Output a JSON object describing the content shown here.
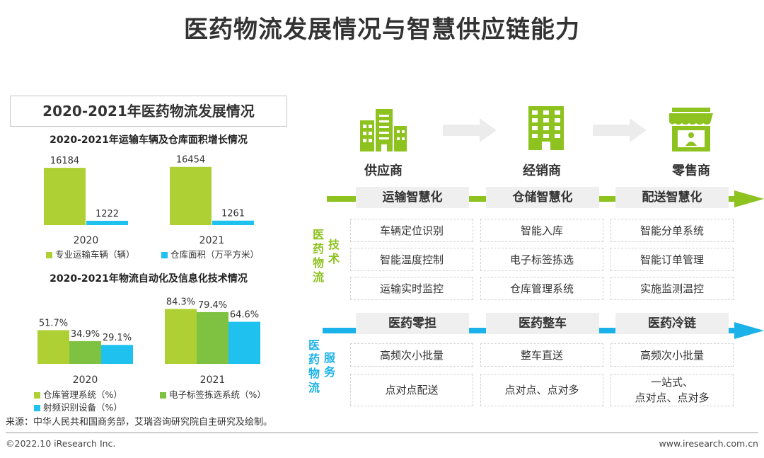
{
  "page_title": "医药物流发展情况与智慧供应链能力",
  "left_panel": {
    "box_title": "2020-2021年医药物流发展情况"
  },
  "colors": {
    "light_green": "#afd034",
    "mid_green": "#7fc241",
    "cyan": "#1fc2ef"
  },
  "chart_data": [
    {
      "type": "bar",
      "title": "2020-2021年运输车辆及仓库面积增长情况",
      "categories": [
        "2020",
        "2021"
      ],
      "series": [
        {
          "name": "专业运输车辆（辆）",
          "values": [
            16184,
            16454
          ],
          "labels": [
            "16184",
            "16454"
          ]
        },
        {
          "name": "仓库面积（万平方米）",
          "values": [
            1222,
            1261
          ],
          "labels": [
            "1222",
            "1261"
          ]
        }
      ],
      "ylim": [
        0,
        20000
      ]
    },
    {
      "type": "bar",
      "title": "2020-2021年物流自动化及信息化技术情况",
      "categories": [
        "2020",
        "2021"
      ],
      "series": [
        {
          "name": "仓库管理系统（%）",
          "values": [
            51.7,
            84.3
          ],
          "labels": [
            "51.7%",
            "84.3%"
          ]
        },
        {
          "name": "电子标签拣选系统（%）",
          "values": [
            34.9,
            79.4
          ],
          "labels": [
            "34.9%",
            "79.4%"
          ]
        },
        {
          "name": "射频识别设备（%）",
          "values": [
            29.1,
            64.6
          ],
          "labels": [
            "29.1%",
            "64.6%"
          ]
        }
      ],
      "ylim": [
        0,
        100
      ]
    }
  ],
  "flow": {
    "stages": [
      {
        "label": "供应商",
        "icon": "buildings-icon"
      },
      {
        "label": "经销商",
        "icon": "office-tower-icon"
      },
      {
        "label": "零售商",
        "icon": "storefront-icon"
      }
    ],
    "tech": {
      "group_label_1": [
        "医",
        "药",
        "物",
        "流"
      ],
      "group_label_2": [
        "技",
        "术"
      ],
      "headers": [
        "运输智慧化",
        "仓储智慧化",
        "配送智慧化"
      ],
      "rows": [
        [
          "车辆定位识别",
          "智能入库",
          "智能分单系统"
        ],
        [
          "智能温度控制",
          "电子标签拣选",
          "智能订单管理"
        ],
        [
          "运输实时监控",
          "仓库管理系统",
          "实施监测温控"
        ]
      ]
    },
    "service": {
      "group_label_1": [
        "医",
        "药",
        "物",
        "流"
      ],
      "group_label_2": [
        "服",
        "务"
      ],
      "headers": [
        "医药零担",
        "医药整车",
        "医药冷链"
      ],
      "rows": [
        [
          "高频次小批量",
          "整车直送",
          "高频次小批量"
        ],
        [
          "点对点配送",
          "点对点、点对多",
          "一站式、\n点对点、点对多"
        ]
      ]
    }
  },
  "source": "来源：中华人民共和国商务部，艾瑞咨询研究院自主研究及绘制。",
  "footer": {
    "copyright": "©2022.10 iResearch Inc.",
    "url": "www.iresearch.com.cn"
  }
}
